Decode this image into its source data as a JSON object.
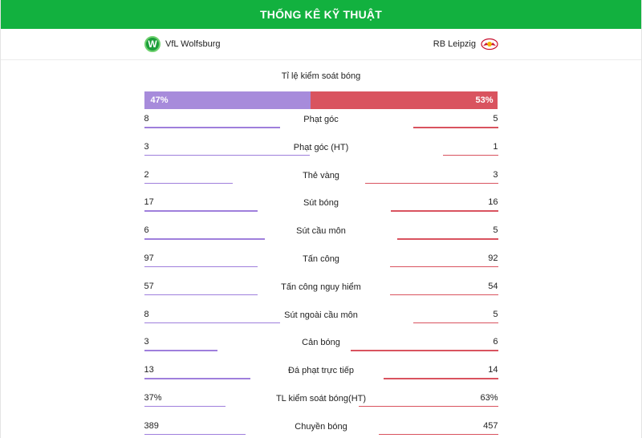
{
  "header": {
    "title": "THỐNG KÊ KỸ THUẬT"
  },
  "teams": {
    "home": {
      "name": "VfL Wolfsburg",
      "logo_letter": "W"
    },
    "away": {
      "name": "RB Leipzig"
    }
  },
  "possession": {
    "title": "Tỉ lệ kiểm soát bóng",
    "home_label": "47%",
    "away_label": "53%",
    "home_pct": 47,
    "away_pct": 53
  },
  "colors": {
    "header": "#12b13f",
    "home": "#a78bdb",
    "away": "#d9535f"
  },
  "stats": [
    {
      "label": "Phạt góc",
      "home": "8",
      "away": "5",
      "home_val": 8,
      "away_val": 5
    },
    {
      "label": "Phạt góc (HT)",
      "home": "3",
      "away": "1",
      "home_val": 3,
      "away_val": 1
    },
    {
      "label": "Thẻ vàng",
      "home": "2",
      "away": "3",
      "home_val": 2,
      "away_val": 3
    },
    {
      "label": "Sút bóng",
      "home": "17",
      "away": "16",
      "home_val": 17,
      "away_val": 16
    },
    {
      "label": "Sút cầu môn",
      "home": "6",
      "away": "5",
      "home_val": 6,
      "away_val": 5
    },
    {
      "label": "Tấn công",
      "home": "97",
      "away": "92",
      "home_val": 97,
      "away_val": 92
    },
    {
      "label": "Tấn công nguy hiểm",
      "home": "57",
      "away": "54",
      "home_val": 57,
      "away_val": 54
    },
    {
      "label": "Sút ngoài cầu môn",
      "home": "8",
      "away": "5",
      "home_val": 8,
      "away_val": 5
    },
    {
      "label": "Cản bóng",
      "home": "3",
      "away": "6",
      "home_val": 3,
      "away_val": 6
    },
    {
      "label": "Đá phạt trực tiếp",
      "home": "13",
      "away": "14",
      "home_val": 13,
      "away_val": 14
    },
    {
      "label": "TL kiểm soát bóng(HT)",
      "home": "37%",
      "away": "63%",
      "home_val": 37,
      "away_val": 63
    },
    {
      "label": "Chuyền bóng",
      "home": "389",
      "away": "457",
      "home_val": 389,
      "away_val": 457
    }
  ]
}
